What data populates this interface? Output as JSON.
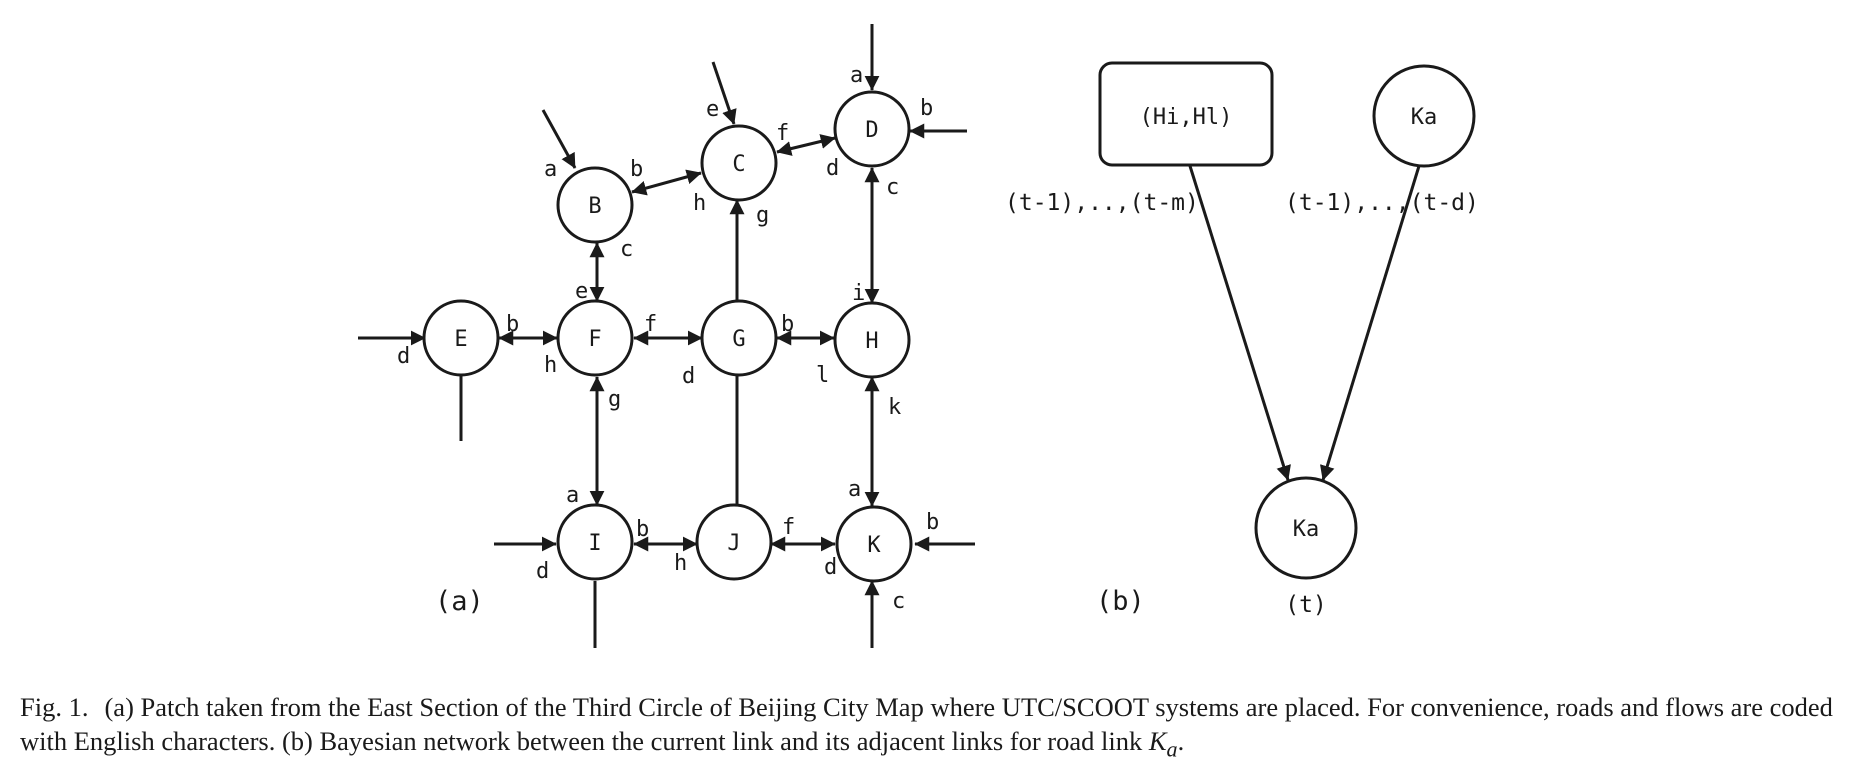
{
  "panel_a": {
    "label": "(a)",
    "nodes": [
      {
        "id": "B",
        "label": "B"
      },
      {
        "id": "C",
        "label": "C"
      },
      {
        "id": "D",
        "label": "D"
      },
      {
        "id": "E",
        "label": "E"
      },
      {
        "id": "F",
        "label": "F"
      },
      {
        "id": "G",
        "label": "G"
      },
      {
        "id": "H",
        "label": "H"
      },
      {
        "id": "I",
        "label": "I"
      },
      {
        "id": "J",
        "label": "J"
      },
      {
        "id": "K",
        "label": "K"
      }
    ],
    "port_labels": {
      "B_a": "a",
      "B_b": "b",
      "B_c": "c",
      "C_e": "e",
      "C_f": "f",
      "C_h": "h",
      "C_g": "g",
      "D_a": "a",
      "D_b": "b",
      "D_d": "d",
      "D_c": "c",
      "E_b": "b",
      "E_d": "d",
      "F_e": "e",
      "F_f": "f",
      "F_h": "h",
      "F_g": "g",
      "G_b": "b",
      "G_d": "d",
      "H_i": "i",
      "H_l": "l",
      "H_k": "k",
      "I_a": "a",
      "I_b": "b",
      "I_d": "d",
      "I_h": "h",
      "J_f": "f",
      "K_a": "a",
      "K_b": "b",
      "K_d": "d",
      "K_c": "c"
    }
  },
  "panel_b": {
    "label": "(b)",
    "box_label": "(Hi,Hl)",
    "circle_top_label": "Ka",
    "left_range": "(t-1),..,(t-m)",
    "right_range": "(t-1),..,(t-d)",
    "target_label": "Ka",
    "target_time": "(t)"
  },
  "caption": {
    "prefix": "Fig. 1.",
    "text_1": "(a) Patch taken from the East Section of the Third Circle of Beijing City Map where UTC/SCOOT systems are placed. For convenience, roads and flows are coded with English characters. (b) Bayesian network between the current link and its adjacent links for road link ",
    "math_var": "K",
    "math_sub": "a",
    "text_end": "."
  }
}
